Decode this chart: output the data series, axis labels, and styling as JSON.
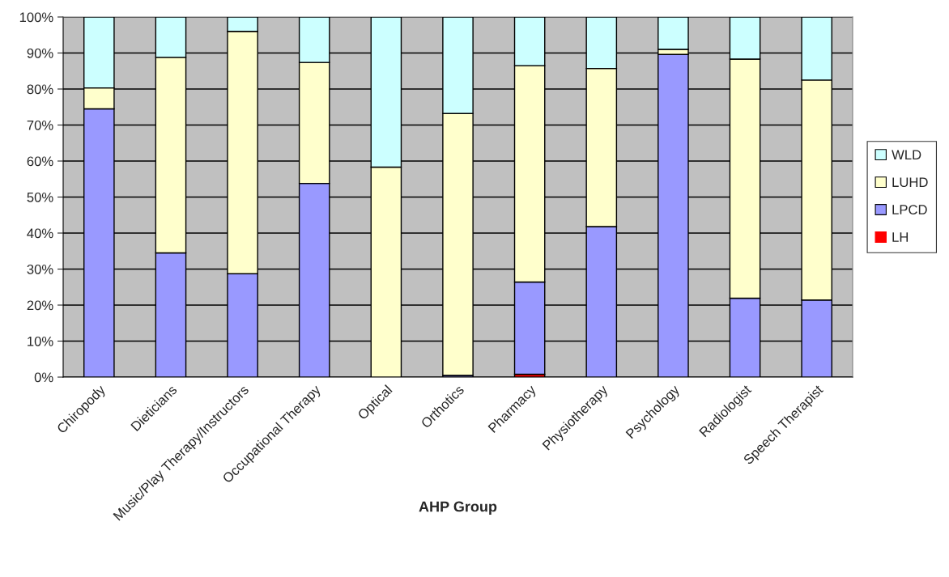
{
  "chart_data": {
    "type": "bar",
    "stacked": true,
    "xlabel": "AHP Group",
    "categories": [
      "Chiropody",
      "Dieticians",
      "Music/Play Therapy/Instructors",
      "Occupational Therapy",
      "Optical",
      "Orthotics",
      "Pharmacy",
      "Physiotherapy",
      "Psychology",
      "Radiologist",
      "Speech Therapist"
    ],
    "series": [
      {
        "name": "LH",
        "color": "#ff0000",
        "values": [
          0,
          0,
          0,
          0,
          0,
          0,
          0.8,
          0,
          0,
          0,
          0
        ]
      },
      {
        "name": "LPCD",
        "color": "#9999ff",
        "values": [
          74.5,
          34.5,
          28.7,
          53.8,
          0,
          0.5,
          25.6,
          41.8,
          89.6,
          21.9,
          21.4
        ]
      },
      {
        "name": "LUHD",
        "color": "#ffffcc",
        "values": [
          5.8,
          54.3,
          67.3,
          33.6,
          58.3,
          72.7,
          60.1,
          43.9,
          1.4,
          66.4,
          61.1
        ]
      },
      {
        "name": "WLD",
        "color": "#ccffff",
        "values": [
          19.7,
          11.2,
          4.0,
          12.6,
          41.7,
          26.8,
          13.5,
          14.3,
          9.0,
          11.7,
          17.5
        ]
      }
    ],
    "ylim": [
      0,
      100
    ],
    "yticks": [
      {
        "value": 0,
        "label": "0%"
      },
      {
        "value": 10,
        "label": "10%"
      },
      {
        "value": 20,
        "label": "20%"
      },
      {
        "value": 30,
        "label": "30%"
      },
      {
        "value": 40,
        "label": "40%"
      },
      {
        "value": 50,
        "label": "50%"
      },
      {
        "value": 60,
        "label": "60%"
      },
      {
        "value": 70,
        "label": "70%"
      },
      {
        "value": 80,
        "label": "80%"
      },
      {
        "value": 90,
        "label": "90%"
      },
      {
        "value": 100,
        "label": "100%"
      }
    ],
    "grid": "y",
    "legend": "right"
  }
}
